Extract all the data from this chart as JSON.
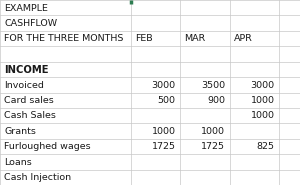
{
  "header_lines": [
    "EXAMPLE",
    "CASHFLOW",
    "FOR THE THREE MONTHS"
  ],
  "months": [
    "FEB",
    "MAR",
    "APR"
  ],
  "section_label": "INCOME",
  "rows": [
    {
      "label": "Invoiced",
      "feb": "3000",
      "mar": "3500",
      "apr": "3000"
    },
    {
      "label": "Card sales",
      "feb": "500",
      "mar": "900",
      "apr": "1000"
    },
    {
      "label": "Cash Sales",
      "feb": "",
      "mar": "",
      "apr": "1000"
    },
    {
      "label": "Grants",
      "feb": "1000",
      "mar": "1000",
      "apr": ""
    },
    {
      "label": "Furloughed wages",
      "feb": "1725",
      "mar": "1725",
      "apr": "825"
    },
    {
      "label": "Loans",
      "feb": "",
      "mar": "",
      "apr": ""
    },
    {
      "label": "Cash Injection",
      "feb": "",
      "mar": "",
      "apr": ""
    }
  ],
  "background_color": "#ffffff",
  "grid_color": "#c8c8c8",
  "green_color": "#2e7d52",
  "text_color": "#1a1a1a",
  "font_size": 6.8,
  "section_font_size": 7.2,
  "col_bounds": [
    0.0,
    0.435,
    0.6,
    0.765,
    0.93,
    1.0
  ],
  "total_rows": 12
}
